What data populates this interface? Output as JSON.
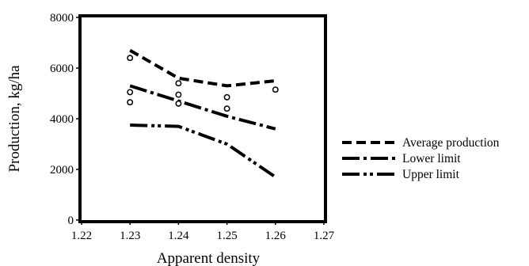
{
  "chart_data": {
    "type": "line",
    "title": "",
    "xlabel": "Apparent density",
    "ylabel": "Production, kg/ha",
    "xlim": [
      1.22,
      1.27
    ],
    "ylim": [
      0,
      8000
    ],
    "x_ticks": [
      "1.22",
      "1.23",
      "1.24",
      "1.25",
      "1.26",
      "1.27"
    ],
    "y_ticks": [
      "0",
      "2000",
      "4000",
      "6000",
      "8000"
    ],
    "grid": false,
    "legend_position": "right",
    "series": [
      {
        "name": "Average production",
        "style": "dashed",
        "x": [
          1.23,
          1.24,
          1.25,
          1.26
        ],
        "y": [
          6700,
          5600,
          5300,
          5500
        ]
      },
      {
        "name": "Lower limit",
        "style": "dash-dot",
        "x": [
          1.23,
          1.24,
          1.25,
          1.26
        ],
        "y": [
          5300,
          4700,
          4100,
          3600
        ]
      },
      {
        "name": "Upper limit",
        "style": "dash-dot-dot",
        "x": [
          1.23,
          1.24,
          1.25,
          1.26
        ],
        "y": [
          3750,
          3700,
          3000,
          1700
        ]
      }
    ],
    "observed_points": {
      "x": [
        1.23,
        1.23,
        1.23,
        1.24,
        1.24,
        1.24,
        1.25,
        1.25,
        1.26
      ],
      "y": [
        6400,
        5050,
        4650,
        5400,
        4950,
        4600,
        4850,
        4400,
        5150
      ]
    }
  }
}
